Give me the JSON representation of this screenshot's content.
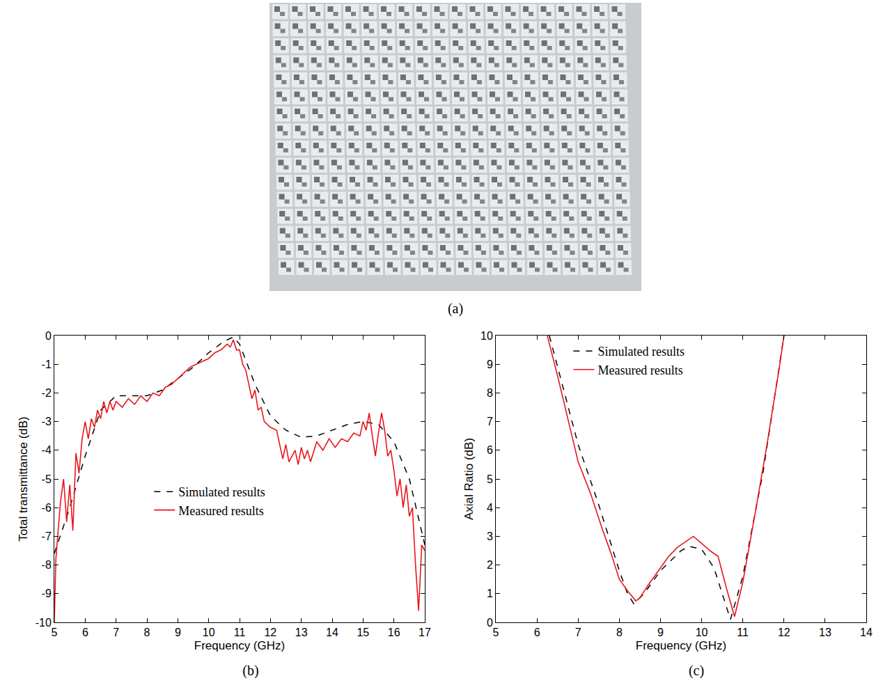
{
  "photo": {
    "label": "(a)"
  },
  "chart_data": [
    {
      "type": "line",
      "panel_label": "(b)",
      "x_label": "Frequency (GHz)",
      "y_label": "Total transmittance (dB)",
      "xlim": [
        5,
        17
      ],
      "xticks": [
        5,
        6,
        7,
        8,
        9,
        10,
        11,
        12,
        13,
        14,
        15,
        16,
        17
      ],
      "ylim": [
        -10,
        0
      ],
      "yticks": [
        -10,
        -9,
        -8,
        -7,
        -6,
        -5,
        -4,
        -3,
        -2,
        -1,
        0
      ],
      "grid": false,
      "legend": "center",
      "series": [
        {
          "name": "Simulated results",
          "color": "#000000",
          "line_style": "dash",
          "x": [
            5,
            5.5,
            6,
            6.5,
            7,
            7.5,
            8,
            8.5,
            9,
            9.5,
            10,
            10.5,
            10.8,
            11,
            11.5,
            12,
            12.5,
            13,
            13.5,
            14,
            14.5,
            15,
            15.5,
            16,
            16.5,
            17
          ],
          "values": [
            -7.6,
            -6.0,
            -4.2,
            -2.6,
            -2.1,
            -2.1,
            -2.1,
            -1.9,
            -1.5,
            -1.1,
            -0.6,
            -0.2,
            -0.05,
            -0.3,
            -1.7,
            -2.8,
            -3.3,
            -3.55,
            -3.5,
            -3.3,
            -3.1,
            -3.0,
            -3.1,
            -3.7,
            -5.0,
            -7.3
          ]
        },
        {
          "name": "Measured results",
          "color": "#e8161b",
          "line_style": "solid",
          "x": [
            5.0,
            5.05,
            5.2,
            5.3,
            5.4,
            5.5,
            5.6,
            5.7,
            5.8,
            5.9,
            6.0,
            6.1,
            6.2,
            6.3,
            6.4,
            6.5,
            6.6,
            6.7,
            6.8,
            6.9,
            7.0,
            7.2,
            7.4,
            7.6,
            7.8,
            8.0,
            8.2,
            8.4,
            8.6,
            8.8,
            9.0,
            9.2,
            9.4,
            9.6,
            9.8,
            10.0,
            10.2,
            10.4,
            10.6,
            10.7,
            10.8,
            10.9,
            11.0,
            11.1,
            11.2,
            11.4,
            11.5,
            11.6,
            11.7,
            11.8,
            12.0,
            12.2,
            12.4,
            12.5,
            12.6,
            12.8,
            12.9,
            13.0,
            13.1,
            13.2,
            13.3,
            13.5,
            13.7,
            13.9,
            14.1,
            14.3,
            14.5,
            14.7,
            14.9,
            15.0,
            15.1,
            15.2,
            15.3,
            15.4,
            15.5,
            15.6,
            15.7,
            15.8,
            15.9,
            16.0,
            16.1,
            16.2,
            16.3,
            16.4,
            16.5,
            16.6,
            16.7,
            16.8,
            16.9,
            17.0
          ],
          "values": [
            -10,
            -7.8,
            -5.8,
            -5.0,
            -6.5,
            -5.2,
            -6.8,
            -4.1,
            -4.8,
            -3.6,
            -3.0,
            -3.6,
            -2.9,
            -3.2,
            -2.6,
            -2.9,
            -2.3,
            -2.7,
            -2.3,
            -2.6,
            -2.3,
            -2.5,
            -2.2,
            -2.4,
            -2.1,
            -2.3,
            -2.0,
            -2.1,
            -1.8,
            -1.7,
            -1.5,
            -1.3,
            -1.1,
            -1.0,
            -0.9,
            -0.8,
            -0.6,
            -0.5,
            -0.3,
            -0.4,
            -0.15,
            -0.5,
            -0.5,
            -1.0,
            -1.2,
            -2.2,
            -1.9,
            -2.6,
            -2.5,
            -3.0,
            -3.2,
            -3.3,
            -4.3,
            -3.8,
            -4.4,
            -4.0,
            -4.5,
            -3.9,
            -4.3,
            -4.0,
            -4.4,
            -3.7,
            -4.0,
            -3.6,
            -3.9,
            -3.6,
            -3.7,
            -3.4,
            -3.5,
            -3.0,
            -3.3,
            -2.7,
            -3.5,
            -4.2,
            -3.4,
            -2.7,
            -3.3,
            -4.2,
            -4.0,
            -4.7,
            -5.6,
            -5.0,
            -6.0,
            -5.2,
            -6.3,
            -6.0,
            -8.0,
            -9.6,
            -7.3,
            -7.5
          ]
        }
      ]
    },
    {
      "type": "line",
      "panel_label": "(c)",
      "x_label": "Frequency (GHz)",
      "y_label": "Axial Ratio (dB)",
      "xlim": [
        5,
        14
      ],
      "xticks": [
        5,
        6,
        7,
        8,
        9,
        10,
        11,
        12,
        13,
        14
      ],
      "ylim": [
        0,
        10
      ],
      "yticks": [
        0,
        1,
        2,
        3,
        4,
        5,
        6,
        7,
        8,
        9,
        10
      ],
      "grid": false,
      "legend": "top left",
      "series": [
        {
          "name": "Simulated results",
          "color": "#000000",
          "line_style": "dash",
          "x": [
            6.3,
            6.5,
            7,
            7.5,
            8,
            8.2,
            8.35,
            8.6,
            9,
            9.5,
            9.7,
            10,
            10.3,
            10.5,
            10.7,
            11,
            11.5,
            12
          ],
          "values": [
            10,
            8.9,
            6.2,
            4.1,
            1.8,
            1.0,
            0.65,
            1.0,
            1.8,
            2.5,
            2.65,
            2.55,
            1.9,
            1.0,
            0.1,
            1.6,
            5.3,
            10
          ]
        },
        {
          "name": "Measured results",
          "color": "#e8161b",
          "line_style": "solid",
          "x": [
            6.25,
            6.5,
            6.8,
            7.0,
            7.3,
            7.6,
            7.8,
            8.0,
            8.2,
            8.4,
            8.5,
            8.7,
            9.0,
            9.2,
            9.4,
            9.6,
            9.8,
            10.0,
            10.2,
            10.4,
            10.6,
            10.8,
            11.0,
            11.3,
            11.6,
            11.9,
            12.0
          ],
          "values": [
            10,
            8.6,
            6.8,
            5.6,
            4.5,
            3.2,
            2.4,
            1.5,
            1.1,
            0.75,
            0.85,
            1.3,
            1.9,
            2.3,
            2.6,
            2.8,
            3.0,
            2.75,
            2.5,
            2.3,
            1.2,
            0.2,
            1.4,
            3.8,
            6.3,
            9.0,
            10
          ]
        }
      ]
    }
  ]
}
